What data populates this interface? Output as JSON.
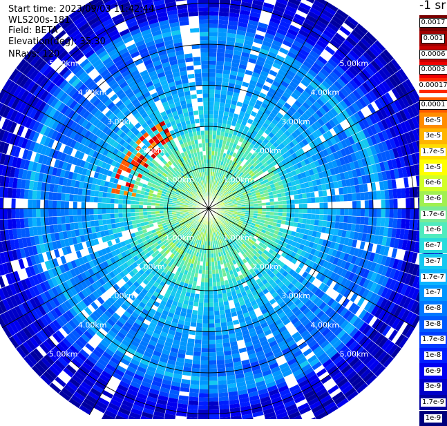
{
  "header": {
    "start_time": "Start time: 2023/09/03 11:42:44",
    "instrument": "WLS200s-181",
    "field": "Field: BETA",
    "elevation": "Elevation(deg): 35.30",
    "nrays": "NRays: 120"
  },
  "colorbar": {
    "unit": "-1 sr",
    "gaps_after": [
      4
    ],
    "entries": [
      {
        "label": "0.0017",
        "color": "#780000",
        "boxed": true
      },
      {
        "label": "0.001",
        "color": "#a00000",
        "boxed": true
      },
      {
        "label": "0.0006",
        "color": "#c80000",
        "boxed": true
      },
      {
        "label": "0.0003",
        "color": "#f00000",
        "boxed": true
      },
      {
        "label": "0.00017",
        "color": "#ff2800",
        "boxed": false
      },
      {
        "label": "0.0001",
        "color": "#ff5a00",
        "boxed": true
      },
      {
        "label": "6e-5",
        "color": "#ff8c00",
        "boxed": false
      },
      {
        "label": "3e-5",
        "color": "#ffb400",
        "boxed": false
      },
      {
        "label": "1.7e-5",
        "color": "#ffdc00",
        "boxed": false
      },
      {
        "label": "1e-5",
        "color": "#ffff00",
        "boxed": false
      },
      {
        "label": "6e-6",
        "color": "#d2ff28",
        "boxed": false
      },
      {
        "label": "3e-6",
        "color": "#a0f050",
        "boxed": false
      },
      {
        "label": "1.7e-6",
        "color": "#78eb96",
        "boxed": false
      },
      {
        "label": "1e-6",
        "color": "#50ebbe",
        "boxed": false
      },
      {
        "label": "6e-7",
        "color": "#28dcdc",
        "boxed": false
      },
      {
        "label": "3e-7",
        "color": "#14c8f0",
        "boxed": false
      },
      {
        "label": "1.7e-7",
        "color": "#0ab4ff",
        "boxed": false
      },
      {
        "label": "1e-7",
        "color": "#0096ff",
        "boxed": false
      },
      {
        "label": "6e-8",
        "color": "#0078ff",
        "boxed": false
      },
      {
        "label": "3e-8",
        "color": "#005aff",
        "boxed": false
      },
      {
        "label": "1.7e-8",
        "color": "#003cff",
        "boxed": false
      },
      {
        "label": "1e-8",
        "color": "#001eff",
        "boxed": false
      },
      {
        "label": "6e-9",
        "color": "#0000f0",
        "boxed": false
      },
      {
        "label": "3e-9",
        "color": "#0000c8",
        "boxed": false
      },
      {
        "label": "1.7e-9",
        "color": "#0000a0",
        "boxed": false
      },
      {
        "label": "1e-9",
        "color": "#00007d",
        "boxed": false
      }
    ]
  },
  "scan": {
    "range_rings_km": [
      1,
      2,
      3,
      4,
      5
    ],
    "ring_labels": [
      "1.00km",
      "2.00km",
      "3.00km",
      "4.00km",
      "5.00km"
    ],
    "spoke_count": 12,
    "ray_count": 120,
    "max_range_km": 5.8,
    "scan_start_deg": -18
  }
}
